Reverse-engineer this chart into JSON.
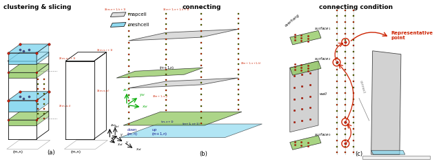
{
  "title_a": "clustering & slicing",
  "title_b": "connecting",
  "title_c": "connecting condition",
  "label_a": "(a)",
  "label_b": "(b)",
  "label_c": "(c)",
  "bg_color": "#ffffff",
  "blue_color": "#7dd4ee",
  "green_color": "#90c860",
  "gray_color": "#c0c0c0",
  "red_color": "#cc2200",
  "legend_mapcell": "mapcell",
  "legend_meshcell": "meshcell"
}
